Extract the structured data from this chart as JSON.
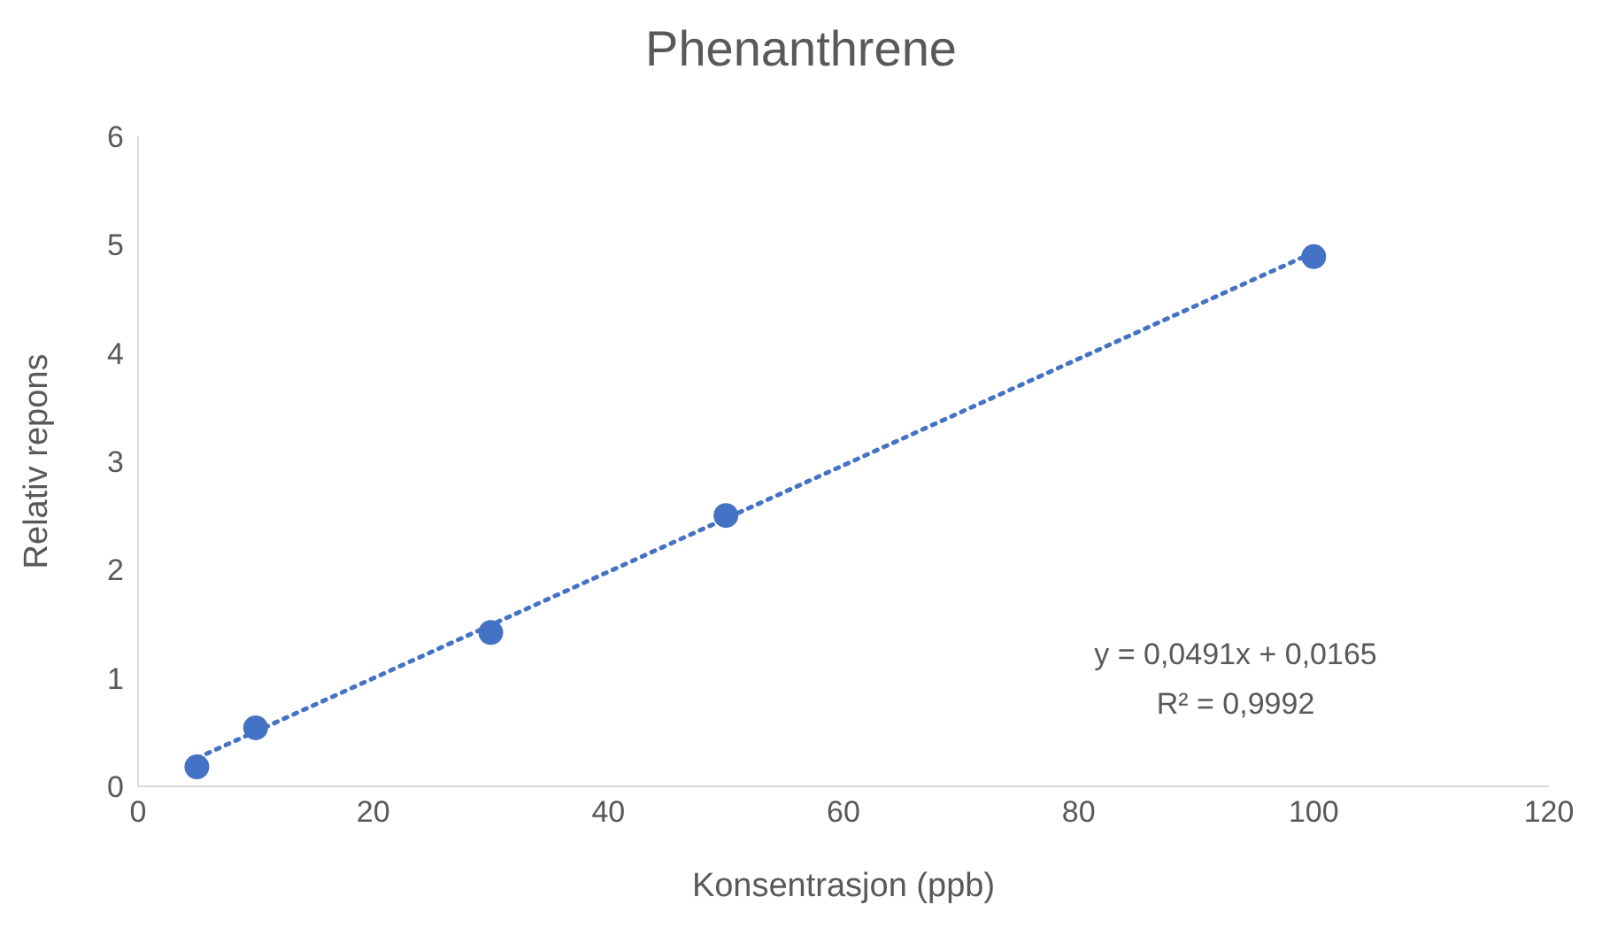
{
  "chart_data": {
    "type": "scatter",
    "title": "Phenanthrene",
    "xlabel": "Konsentrasjon (ppb)",
    "ylabel": "Relativ repons",
    "xlim": [
      0,
      120
    ],
    "xticks": [
      0,
      20,
      40,
      60,
      80,
      100,
      120
    ],
    "ylim": [
      0,
      6
    ],
    "yticks": [
      0,
      1,
      2,
      3,
      4,
      5,
      6
    ],
    "grid": false,
    "legend": false,
    "marker": "circle",
    "series": [
      {
        "color": "#4472c4",
        "x": [
          5,
          10,
          30,
          50,
          100
        ],
        "values": [
          0.18,
          0.54,
          1.42,
          2.5,
          4.89
        ]
      },
      {
        "type": "line",
        "color": "#4472c4",
        "x": [
          5,
          100
        ],
        "values": [
          0.26,
          4.93
        ],
        "marker": "none",
        "line_style": "dotted"
      }
    ],
    "annotations": [
      "y = 0,0491x + 0,0165",
      "R² = 0,9992"
    ]
  }
}
